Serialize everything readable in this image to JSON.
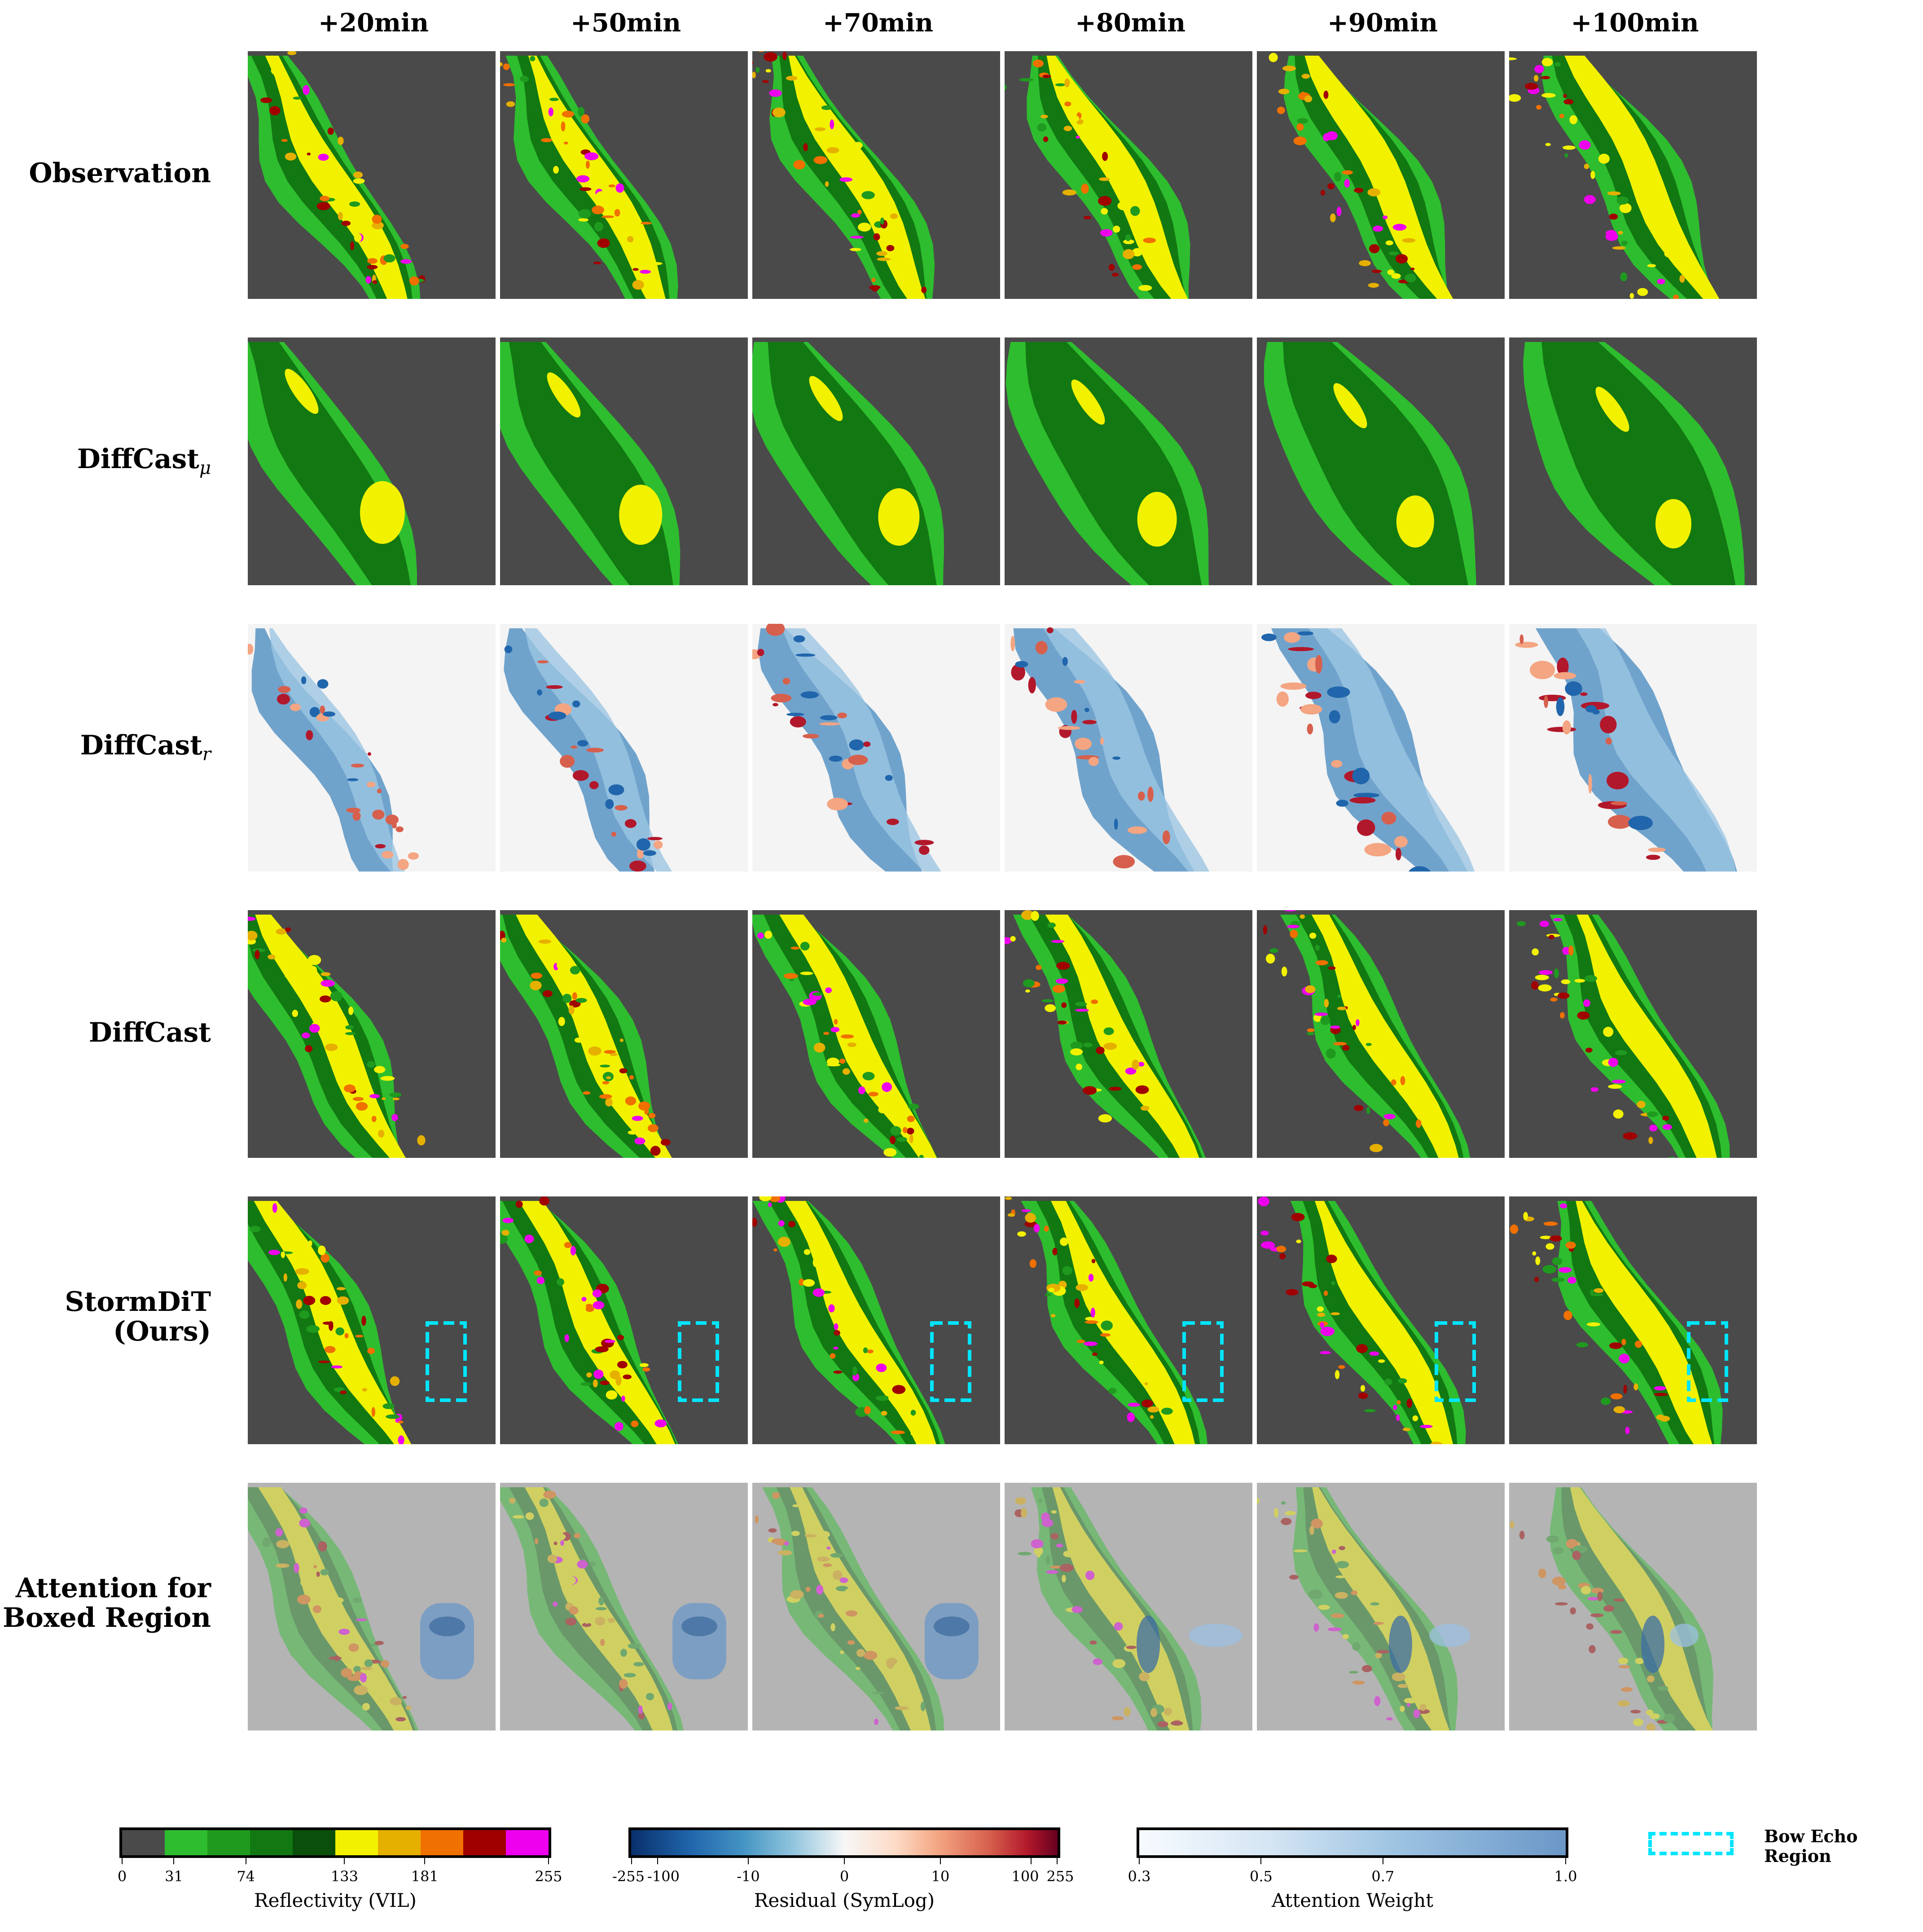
{
  "columns": [
    "+20min",
    "+50min",
    "+70min",
    "+80min",
    "+90min",
    "+100min"
  ],
  "rows": [
    {
      "label": "Observation",
      "sub": "",
      "kind": "radar"
    },
    {
      "label": "DiffCast",
      "sub": "μ",
      "kind": "smooth"
    },
    {
      "label": "DiffCast",
      "sub": "r",
      "kind": "residual"
    },
    {
      "label": "DiffCast",
      "sub": "",
      "kind": "radar"
    },
    {
      "label": "StormDiT",
      "label2": "(Ours)",
      "sub": "",
      "kind": "radar-box"
    },
    {
      "label": "Attention for",
      "label2": "Boxed Region",
      "sub": "",
      "kind": "attention"
    }
  ],
  "colorbars": {
    "reflectivity": {
      "title": "Reflectivity (VIL)",
      "ticks": [
        "0",
        "31",
        "74",
        "133",
        "181",
        "255"
      ],
      "tick_values": [
        0,
        31,
        74,
        133,
        181,
        255
      ],
      "range": [
        0,
        255
      ],
      "colors": [
        "#4a4a4a",
        "#2ebd2e",
        "#1f9a1f",
        "#127812",
        "#0a4f0a",
        "#f2f200",
        "#e6b000",
        "#f07000",
        "#a00000",
        "#ee00ee"
      ]
    },
    "residual": {
      "title": "Residual (SymLog)",
      "ticks": [
        "-255",
        "-100",
        "-10",
        "0",
        "10",
        "100",
        "255"
      ]
    },
    "attention": {
      "title": "Attention Weight",
      "ticks": [
        "0.3",
        "0.5",
        "0.7",
        "1.0"
      ],
      "tick_values": [
        0.3,
        0.5,
        0.7,
        1.0
      ],
      "range": [
        0.3,
        1.0
      ]
    }
  },
  "legend": {
    "line1": "Bow Echo",
    "line2": "Region",
    "color": "#00e5ff"
  },
  "colors": {
    "background": "#4a4a4a",
    "attention_background": "#b4b4b4"
  }
}
